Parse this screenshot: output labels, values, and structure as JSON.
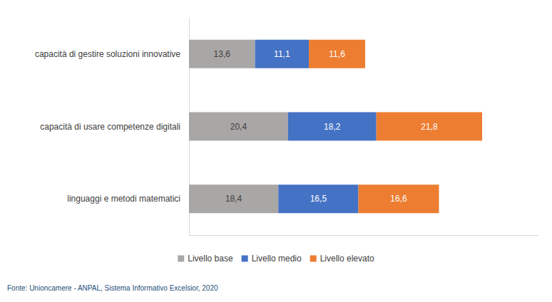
{
  "chart_data": {
    "type": "bar",
    "orientation": "horizontal",
    "stacked": true,
    "data_labels": true,
    "categories": [
      "capacità di gestire soluzioni innovative",
      "capacità di usare competenze digitali",
      "linguaggi e metodi matematici"
    ],
    "series": [
      {
        "name": "Livello base",
        "color": "#a9a6a6",
        "values": [
          13.6,
          20.4,
          18.4
        ],
        "value_labels": [
          "13,6",
          "20,4",
          "18,4"
        ]
      },
      {
        "name": "Livello medio",
        "color": "#4472c4",
        "values": [
          11.1,
          18.2,
          16.5
        ],
        "value_labels": [
          "11,1",
          "18,2",
          "16,5"
        ]
      },
      {
        "name": "Livello elevato",
        "color": "#ed7d31",
        "values": [
          11.6,
          21.8,
          16.6
        ],
        "value_labels": [
          "11,6",
          "21,8",
          "16,6"
        ]
      }
    ],
    "xlim": [
      0,
      72
    ],
    "xticks": [],
    "tick_labels": false,
    "grid": false,
    "legend": "bottom",
    "source": "Fonte: Unioncamere - ANPAL, Sistema Informativo Excelsior, 2020"
  }
}
